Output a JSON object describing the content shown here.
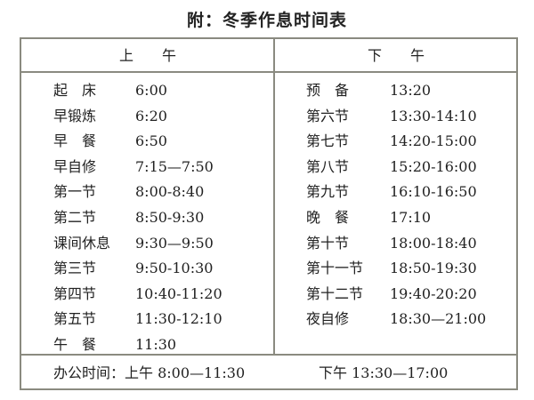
{
  "title": "附：冬季作息时间表",
  "morning": {
    "header": "上　　午",
    "rows": [
      {
        "name": "起　床",
        "time": "6:00"
      },
      {
        "name": "早锻炼",
        "time": "6:20"
      },
      {
        "name": "早　餐",
        "time": "6:50"
      },
      {
        "name": "早自修",
        "time": "7:15—7:50"
      },
      {
        "name": "第一节",
        "time": "8:00-8:40"
      },
      {
        "name": "第二节",
        "time": "8:50-9:30"
      },
      {
        "name": "课间休息",
        "time": "9:30—9:50"
      },
      {
        "name": "第三节",
        "time": "9:50-10:30"
      },
      {
        "name": "第四节",
        "time": "10:40-11:20"
      },
      {
        "name": "第五节",
        "time": "11:30-12:10"
      },
      {
        "name": "午　餐",
        "time": "11:30"
      }
    ]
  },
  "afternoon": {
    "header": "下　　午",
    "rows": [
      {
        "name": "预　备",
        "time": "13:20"
      },
      {
        "name": "第六节",
        "time": "13:30-14:10"
      },
      {
        "name": "第七节",
        "time": "14:20-15:00"
      },
      {
        "name": "第八节",
        "time": "15:20-16:00"
      },
      {
        "name": "第九节",
        "time": "16:10-16:50"
      },
      {
        "name": "晚　餐",
        "time": "17:10"
      },
      {
        "name": "第十节",
        "time": "18:00-18:40"
      },
      {
        "name": "第十一节",
        "time": "18:50-19:30"
      },
      {
        "name": "第十二节",
        "time": "19:40-20:20"
      },
      {
        "name": "夜自修",
        "time": "18:30—21:00"
      }
    ]
  },
  "footer": {
    "morning_hours": "办公时间：上午 8:00—11:30",
    "afternoon_hours": "下午 13:30—17:00"
  }
}
